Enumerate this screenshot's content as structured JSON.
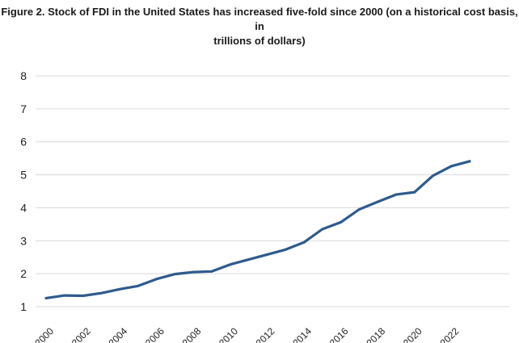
{
  "chart_data": {
    "type": "line",
    "title_line1": "Figure 2. Stock of FDI in the United States has increased five-fold since 2000 (on a historical cost basis, in",
    "title_line2": "trillions of dollars)",
    "xlabel": "",
    "ylabel": "",
    "ylim": [
      1,
      8
    ],
    "y_ticks": [
      1,
      2,
      3,
      4,
      5,
      6,
      7,
      8
    ],
    "x_range": [
      2000,
      2023
    ],
    "x_tick_labels": [
      "2000",
      "2002",
      "2004",
      "2006",
      "2008",
      "2010",
      "2012",
      "2014",
      "2016",
      "2018",
      "2020",
      "2022"
    ],
    "grid": "horizontal",
    "legend": "none",
    "line_color": "#2e5b8e",
    "grid_color": "#d9d9d9",
    "series": [
      {
        "x": [
          2000,
          2001,
          2002,
          2003,
          2004,
          2005,
          2006,
          2007,
          2008,
          2009,
          2010,
          2011,
          2012,
          2013,
          2014,
          2015,
          2016,
          2017,
          2018,
          2019,
          2020,
          2021,
          2022,
          2023
        ],
        "values": [
          1.26,
          1.34,
          1.33,
          1.41,
          1.53,
          1.63,
          1.84,
          1.99,
          2.05,
          2.07,
          2.28,
          2.43,
          2.58,
          2.73,
          2.95,
          3.35,
          3.56,
          3.95,
          4.18,
          4.4,
          4.47,
          4.97,
          5.26,
          5.41
        ]
      }
    ]
  }
}
